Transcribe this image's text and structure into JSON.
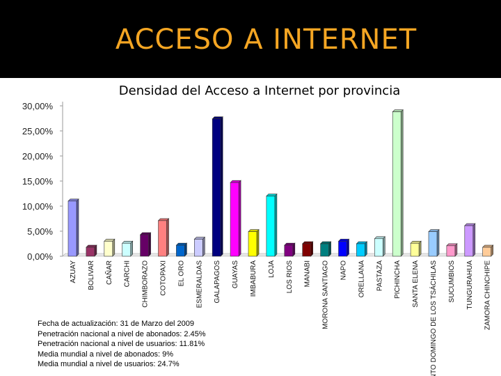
{
  "slide": {
    "title": "ACCESO A INTERNET"
  },
  "chart_data": {
    "type": "bar",
    "title": "Densidad del Acceso a Internet por provincia",
    "xlabel": "",
    "ylabel": "",
    "ylim": [
      0,
      30
    ],
    "yticks": [
      "30,00%",
      "25,00%",
      "20,00%",
      "15,00%",
      "10,00%",
      "5,00%",
      "0,00%"
    ],
    "grid": false,
    "legend": "none",
    "categories": [
      "AZUAY",
      "BOLIVAR",
      "CAÑAR",
      "CARCHI",
      "CHIMBORAZO",
      "COTOPAXI",
      "EL ORO",
      "ESMERALDAS",
      "GALAPAGOS",
      "GUAYAS",
      "IMBABURA",
      "LOJA",
      "LOS RIOS",
      "MANABI",
      "MORONA SANTIAGO",
      "NAPO",
      "ORELLANA",
      "PASTAZA",
      "PICHINCHA",
      "SANTA ELENA",
      "SANTO DOMINGO DE LOS TSÁCHILAS",
      "SUCUMBIOS",
      "TUNGURAHUA",
      "ZAMORA CHINCHIPE"
    ],
    "values": [
      11.0,
      1.8,
      3.0,
      2.6,
      4.3,
      7.1,
      2.2,
      3.4,
      27.4,
      14.7,
      4.9,
      12.0,
      2.2,
      2.5,
      2.5,
      3.0,
      2.5,
      3.5,
      28.8,
      2.6,
      4.9,
      2.1,
      6.1,
      1.8
    ],
    "colors": [
      "#9999ff",
      "#993366",
      "#ffffcc",
      "#ccffff",
      "#660066",
      "#ff8080",
      "#0066cc",
      "#ccccff",
      "#000080",
      "#ff00ff",
      "#ffff00",
      "#00ffff",
      "#800080",
      "#800000",
      "#008080",
      "#0000ff",
      "#00ccff",
      "#ccffff",
      "#ccffcc",
      "#ffff99",
      "#99ccff",
      "#ff99cc",
      "#cc99ff",
      "#ffcc99"
    ]
  },
  "notes": [
    "Fecha de actualización: 31 de Marzo del 2009",
    "Penetración nacional a nivel de abonados: 2.45%",
    "Penetración nacional a nivel de usuarios: 11.81%",
    "Media mundial a nivel de abonados: 9%",
    "Media mundial a nivel de usuarios: 24.7%"
  ]
}
